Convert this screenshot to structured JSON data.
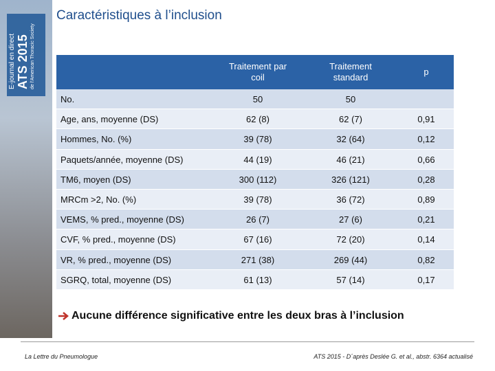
{
  "sidebar": {
    "line1": "E-journal en direct",
    "line2": "ATS 2015",
    "line3": "de l'American Thoracic Society"
  },
  "header": {
    "title": "Caractéristiques à l’inclusion"
  },
  "table": {
    "columns": [
      "Traitement par coil",
      "Traitement standard",
      "p"
    ],
    "rows": [
      [
        "No.",
        "50",
        "50"
      ],
      [
        "Age, ans, moyenne (DS)",
        "62 (8)",
        "62 (7)",
        "0,91"
      ],
      [
        "Hommes, No. (%)",
        "39 (78)",
        "32 (64)",
        "0,12"
      ],
      [
        "Paquets/année, moyenne (DS)",
        "44 (19)",
        "46 (21)",
        "0,66"
      ],
      [
        "TM6, moyen (DS)",
        "300 (112)",
        "326 (121)",
        "0,28"
      ],
      [
        "MRCm >2, No. (%)",
        "39 (78)",
        "36 (72)",
        "0,89"
      ],
      [
        "VEMS, % pred., moyenne (DS)",
        "26 (7)",
        "27 (6)",
        "0,21"
      ],
      [
        "CVF, % pred., moyenne (DS)",
        "67 (16)",
        "72 (20)",
        "0,14"
      ],
      [
        "VR, % pred., moyenne (DS)",
        "271 (38)",
        "269 (44)",
        "0,82"
      ],
      [
        "SGRQ, total, moyenne (DS)",
        "61 (13)",
        "57 (14)",
        "0,17"
      ]
    ]
  },
  "conclusion": "Aucune différence significative entre les deux bras à l’inclusion",
  "footer": {
    "left": "La Lettre du Pneumologue",
    "right": "ATS 2015 - D´après Deslée G. et al., abstr. 6364 actualisé"
  }
}
